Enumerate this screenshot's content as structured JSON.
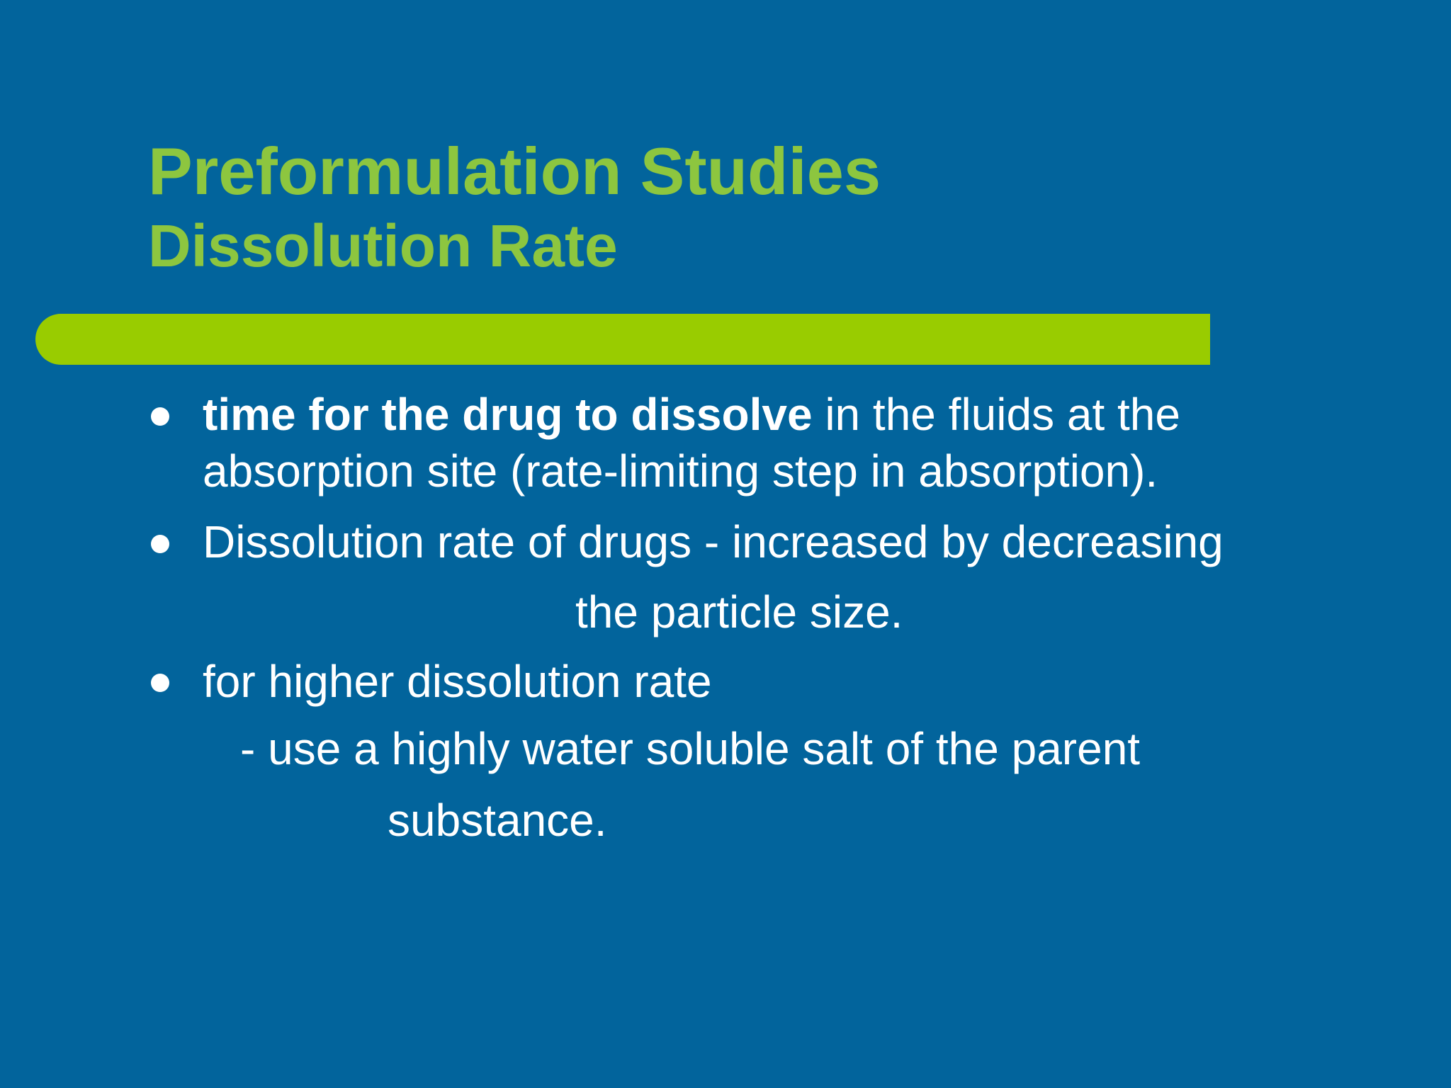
{
  "slide": {
    "title": "Preformulation Studies",
    "subtitle": "Dissolution Rate",
    "colors": {
      "background": "#02649c",
      "title": "#8dc63f",
      "accent_bar": "#99cc00",
      "body_text": "#ffffff"
    }
  },
  "bullets": {
    "b1_bold": "time for the drug to dissolve",
    "b1_rest": " in the fluids at the",
    "b1_line2": "absorption site (rate-limiting step in absorption).",
    "b2_line1": "Dissolution rate of drugs - increased by decreasing",
    "b2_line2": "the  particle size.",
    "b3_line1": "for higher dissolution rate",
    "b3_line2": "- use a highly water soluble salt of the parent",
    "b3_line3": "substance."
  }
}
